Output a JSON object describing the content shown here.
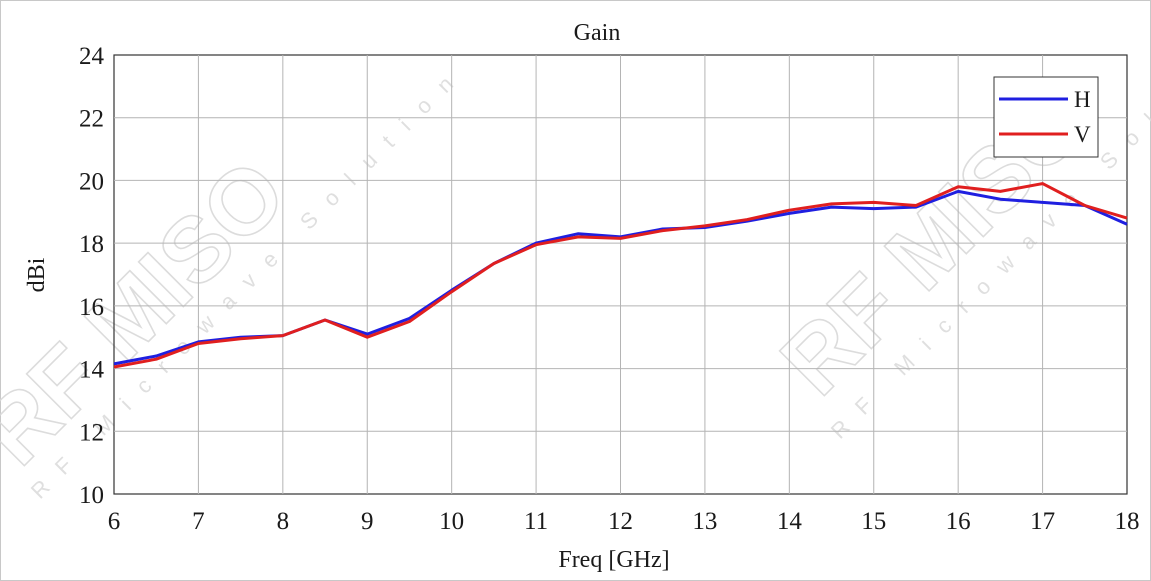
{
  "chart_data": {
    "type": "line",
    "title": "Gain",
    "xlabel": "Freq [GHz]",
    "ylabel": "dBi",
    "xlim": [
      6,
      18
    ],
    "ylim": [
      10,
      24
    ],
    "xticks": [
      "6",
      "7",
      "8",
      "9",
      "10",
      "11",
      "12",
      "13",
      "14",
      "15",
      "16",
      "17",
      "18"
    ],
    "yticks": [
      "10",
      "12",
      "14",
      "16",
      "18",
      "20",
      "22",
      "24"
    ],
    "grid": true,
    "legend_position": "top-right",
    "x": [
      6,
      6.5,
      7,
      7.5,
      8,
      8.5,
      9,
      9.5,
      10,
      10.5,
      11,
      11.5,
      12,
      12.5,
      13,
      13.5,
      14,
      14.5,
      15,
      15.5,
      16,
      16.5,
      17,
      17.5,
      18
    ],
    "series": [
      {
        "name": "H",
        "color": "#1f1fe0",
        "values": [
          14.15,
          14.4,
          14.85,
          15.0,
          15.05,
          15.55,
          15.1,
          15.6,
          16.5,
          17.35,
          18.0,
          18.3,
          18.2,
          18.45,
          18.5,
          18.7,
          18.95,
          19.15,
          19.1,
          19.15,
          19.65,
          19.4,
          19.3,
          19.2,
          18.6
        ]
      },
      {
        "name": "V",
        "color": "#e01f1f",
        "values": [
          14.05,
          14.3,
          14.8,
          14.95,
          15.05,
          15.55,
          15.0,
          15.5,
          16.45,
          17.35,
          17.95,
          18.2,
          18.15,
          18.4,
          18.55,
          18.75,
          19.05,
          19.25,
          19.3,
          19.2,
          19.8,
          19.65,
          19.9,
          19.2,
          18.8
        ]
      }
    ]
  },
  "watermark": {
    "brand": "RF MISO",
    "tagline": "RF Microwave Solution"
  }
}
